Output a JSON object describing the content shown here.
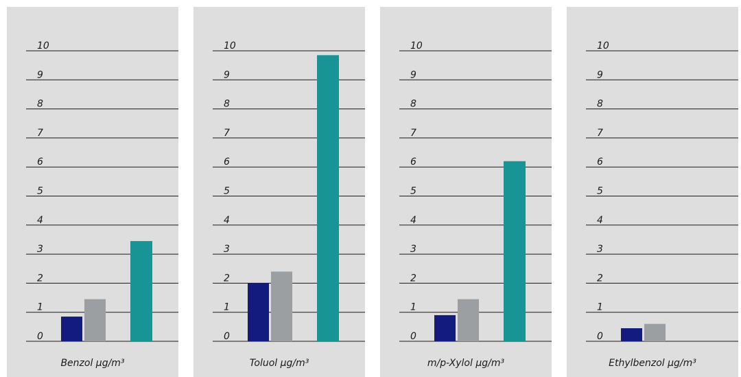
{
  "colors": {
    "panel_background": "#dededf",
    "gridline": "#1a1a1a",
    "series_1": "#131c7e",
    "series_2": "#9c9fa1",
    "series_3": "#189496"
  },
  "chart_data": [
    {
      "type": "bar",
      "xlabel": "Benzol µg/m³",
      "ylim": [
        0,
        10
      ],
      "yticks": [
        "0",
        "1",
        "2",
        "3",
        "4",
        "5",
        "6",
        "7",
        "8",
        "9",
        "10"
      ],
      "grid": true,
      "series": [
        {
          "values": [
            0.85
          ]
        },
        {
          "values": [
            1.45
          ]
        },
        {
          "values": [
            3.45
          ]
        }
      ]
    },
    {
      "type": "bar",
      "xlabel": "Toluol µg/m³",
      "ylim": [
        0,
        10
      ],
      "yticks": [
        "0",
        "1",
        "2",
        "3",
        "4",
        "5",
        "6",
        "7",
        "8",
        "9",
        "10"
      ],
      "grid": true,
      "series": [
        {
          "values": [
            2.0
          ]
        },
        {
          "values": [
            2.4
          ]
        },
        {
          "values": [
            9.85
          ]
        }
      ]
    },
    {
      "type": "bar",
      "xlabel": "m/p-Xylol µg/m³",
      "ylim": [
        0,
        10
      ],
      "yticks": [
        "0",
        "1",
        "2",
        "3",
        "4",
        "5",
        "6",
        "7",
        "8",
        "9",
        "10"
      ],
      "grid": true,
      "series": [
        {
          "values": [
            0.9
          ]
        },
        {
          "values": [
            1.45
          ]
        },
        {
          "values": [
            6.2
          ]
        }
      ]
    },
    {
      "type": "bar",
      "xlabel": "Ethylbenzol µg/m³",
      "ylim": [
        0,
        10
      ],
      "yticks": [
        "0",
        "1",
        "2",
        "3",
        "4",
        "5",
        "6",
        "7",
        "8",
        "9",
        "10"
      ],
      "grid": true,
      "series": [
        {
          "values": [
            0.45
          ]
        },
        {
          "values": [
            0.6
          ]
        },
        {
          "values": []
        }
      ]
    }
  ]
}
